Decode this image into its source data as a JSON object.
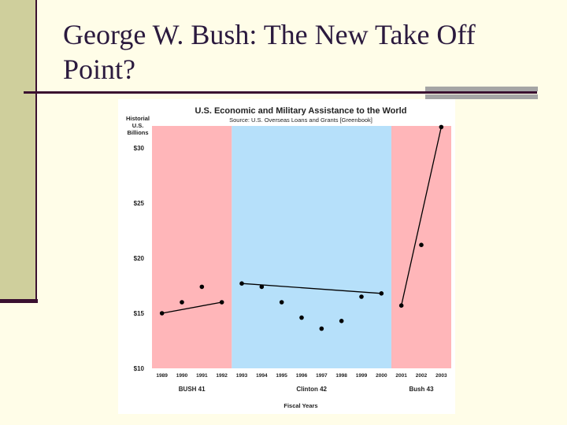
{
  "slide": {
    "title": "George W. Bush: The New Take Off Point?"
  },
  "colors": {
    "background": "#fffde8",
    "left_bar": "#cfcf9c",
    "accent_dark": "#3a1030",
    "bush_band": "#ffb6b9",
    "clinton_band": "#b6e0fa"
  },
  "chart_data": {
    "type": "scatter",
    "title": "U.S. Economic and Military Assistance to the World",
    "subtitle": "Source: U.S. Overseas Loans and Grants [Greenbook]",
    "ylabel_lines": [
      "Historial",
      "U.S.",
      "Billions"
    ],
    "xlabel": "Fiscal Years",
    "ylim": [
      10,
      32
    ],
    "yticks": [
      {
        "value": 10,
        "label": "$10"
      },
      {
        "value": 15,
        "label": "$15"
      },
      {
        "value": 20,
        "label": "$20"
      },
      {
        "value": 25,
        "label": "$25"
      },
      {
        "value": 30,
        "label": "$30"
      }
    ],
    "years": [
      "1989",
      "1990",
      "1991",
      "1992",
      "1993",
      "1994",
      "1995",
      "1996",
      "1997",
      "1998",
      "1999",
      "2000",
      "2001",
      "2002",
      "2003"
    ],
    "values": [
      15.0,
      16.0,
      17.4,
      16.0,
      17.7,
      17.4,
      16.0,
      14.6,
      13.6,
      14.3,
      16.5,
      16.8,
      15.7,
      21.2,
      31.9
    ],
    "periods": [
      {
        "label": "BUSH 41",
        "start": "1989",
        "end": "1992",
        "color": "#ffb6b9"
      },
      {
        "label": "Clinton 42",
        "start": "1993",
        "end": "2000",
        "color": "#b6e0fa"
      },
      {
        "label": "Bush 43",
        "start": "2001",
        "end": "2003",
        "color": "#ffb6b9"
      }
    ],
    "trend_lines": [
      {
        "from": [
          "1989",
          15.0
        ],
        "to": [
          "1992",
          16.0
        ]
      },
      {
        "from": [
          "1993",
          17.7
        ],
        "to": [
          "2000",
          16.8
        ]
      },
      {
        "from": [
          "2001",
          15.7
        ],
        "to": [
          "2003",
          31.9
        ]
      }
    ]
  }
}
